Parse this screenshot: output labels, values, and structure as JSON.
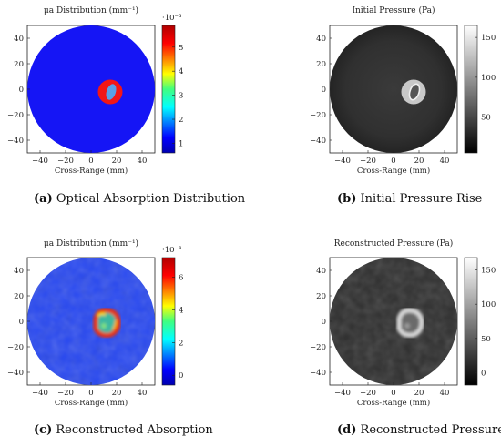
{
  "figure": {
    "panels": [
      {
        "letter": "(a)",
        "caption": "Optical Absorption Distribution",
        "title": "μa Distribution (mm⁻¹)",
        "xlabel": "Cross-Range (mm)",
        "colormap": "jet",
        "colorbar_exponent": "·10⁻³",
        "colorbar_ticks": [
          "1",
          "2",
          "3",
          "4",
          "5"
        ],
        "colorbar_range": [
          0.6,
          5.9
        ]
      },
      {
        "letter": "(b)",
        "caption": "Initial Pressure Rise",
        "title": "Initial Pressure (Pa)",
        "xlabel": "Cross-Range (mm)",
        "colormap": "gray",
        "colorbar_exponent": "",
        "colorbar_ticks": [
          "50",
          "100",
          "150"
        ],
        "colorbar_range": [
          5,
          165
        ]
      },
      {
        "letter": "(c)",
        "caption": "Reconstructed Absorption",
        "title": "μa Distribution (mm⁻¹)",
        "xlabel": "Cross-Range (mm)",
        "colormap": "jet",
        "colorbar_exponent": "·10⁻³",
        "colorbar_ticks": [
          "0",
          "2",
          "4",
          "6"
        ],
        "colorbar_range": [
          -0.6,
          7.2
        ]
      },
      {
        "letter": "(d)",
        "caption": "Reconstructed Pressure",
        "title": "Reconstructed Pressure (Pa)",
        "xlabel": "Cross-Range (mm)",
        "colormap": "gray",
        "colorbar_exponent": "",
        "colorbar_ticks": [
          "0",
          "50",
          "100",
          "150"
        ],
        "colorbar_range": [
          -18,
          168
        ]
      }
    ],
    "x_ticks": [
      "−40",
      "−20",
      "0",
      "20",
      "40"
    ],
    "y_ticks": [
      "40",
      "20",
      "0",
      "−20",
      "−40"
    ],
    "axis_range": [
      -50,
      50
    ]
  }
}
